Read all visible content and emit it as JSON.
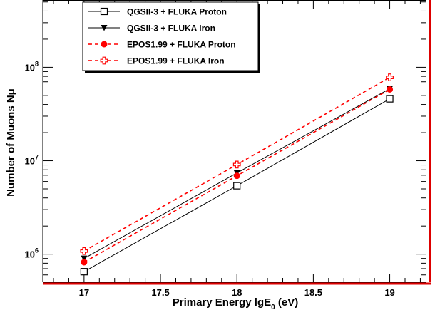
{
  "chart_data": {
    "type": "line",
    "xlabel": {
      "main": "Primary Energy lgE",
      "sub": "0",
      "unit": " (eV)"
    },
    "ylabel": "Number of Muons Nμ",
    "x_ticks": [
      "17",
      "17.5",
      "18",
      "18.5",
      "19"
    ],
    "y_ticks": [
      {
        "base": "10",
        "exp": "6"
      },
      {
        "base": "10",
        "exp": "7"
      },
      {
        "base": "10",
        "exp": "8"
      }
    ],
    "xlim": [
      16.73,
      19.24
    ],
    "ylim_log10": [
      5.7,
      8.72
    ],
    "y_scale": "log",
    "grid": false,
    "legend_position": "top-left",
    "x": [
      17,
      18,
      19
    ],
    "series": [
      {
        "name": "QGSII-3 + FLUKA Proton",
        "values": [
          650000,
          5400000,
          46000000
        ],
        "color": "#000000",
        "dash": "solid",
        "marker": "open-square"
      },
      {
        "name": "QGSII-3 + FLUKA Iron",
        "values": [
          900000,
          7400000,
          59000000
        ],
        "color": "#000000",
        "dash": "solid",
        "marker": "filled-triangle-down"
      },
      {
        "name": "EPOS1.99 + FLUKA Proton",
        "values": [
          820000,
          6900000,
          58000000
        ],
        "color": "#ff0000",
        "dash": "dashed",
        "marker": "filled-circle"
      },
      {
        "name": "EPOS1.99 + FLUKA Iron",
        "values": [
          1080000,
          9100000,
          78000000
        ],
        "color": "#ff0000",
        "dash": "dashed",
        "marker": "open-cross"
      }
    ]
  }
}
